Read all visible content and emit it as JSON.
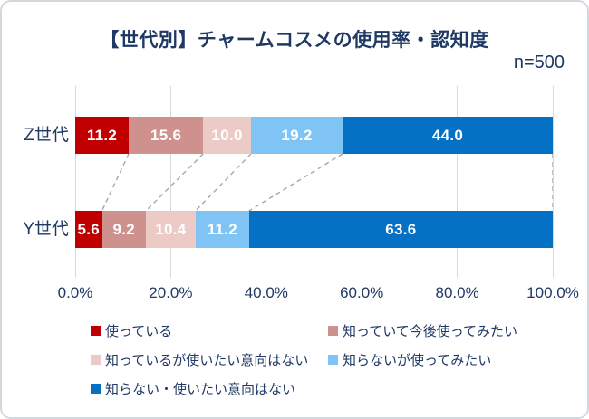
{
  "chart_data": {
    "type": "bar",
    "orientation": "horizontal",
    "stacked": true,
    "title": "【世代別】チャームコスメの使用率・認知度",
    "sample_size": "n=500",
    "categories": [
      "Z世代",
      "Y世代"
    ],
    "series": [
      {
        "name": "使っている",
        "color": "#c00000",
        "values": [
          11.2,
          5.6
        ]
      },
      {
        "name": "知っていて今後使ってみたい",
        "color": "#cf918d",
        "values": [
          15.6,
          9.2
        ]
      },
      {
        "name": "知っているが使いたい意向はない",
        "color": "#eccac6",
        "values": [
          10.0,
          10.4
        ]
      },
      {
        "name": "知らないが使ってみたい",
        "color": "#7fc4f5",
        "values": [
          19.2,
          11.2
        ]
      },
      {
        "name": "知らない・使いたい意向はない",
        "color": "#0571c5",
        "values": [
          44.0,
          63.6
        ]
      }
    ],
    "xlim": [
      0,
      100
    ],
    "x_tick_values": [
      0,
      20,
      40,
      60,
      80,
      100
    ],
    "x_tick_labels": [
      "0.0%",
      "20.0%",
      "40.0%",
      "60.0%",
      "80.0%",
      "100.0%"
    ],
    "grid": true,
    "legend_position": "bottom",
    "value_labels": "inside segments, one decimal, white bold",
    "connectors": "dashed lines linking stack boundaries between the two bars"
  },
  "styles": {
    "text_color": "#1f3864",
    "grid_color": "#d9d9d9",
    "connector_color": "#a6a6a6",
    "value_label_color": "#ffffff",
    "frame_border_color": "#d3d7de",
    "background": "#ffffff"
  }
}
